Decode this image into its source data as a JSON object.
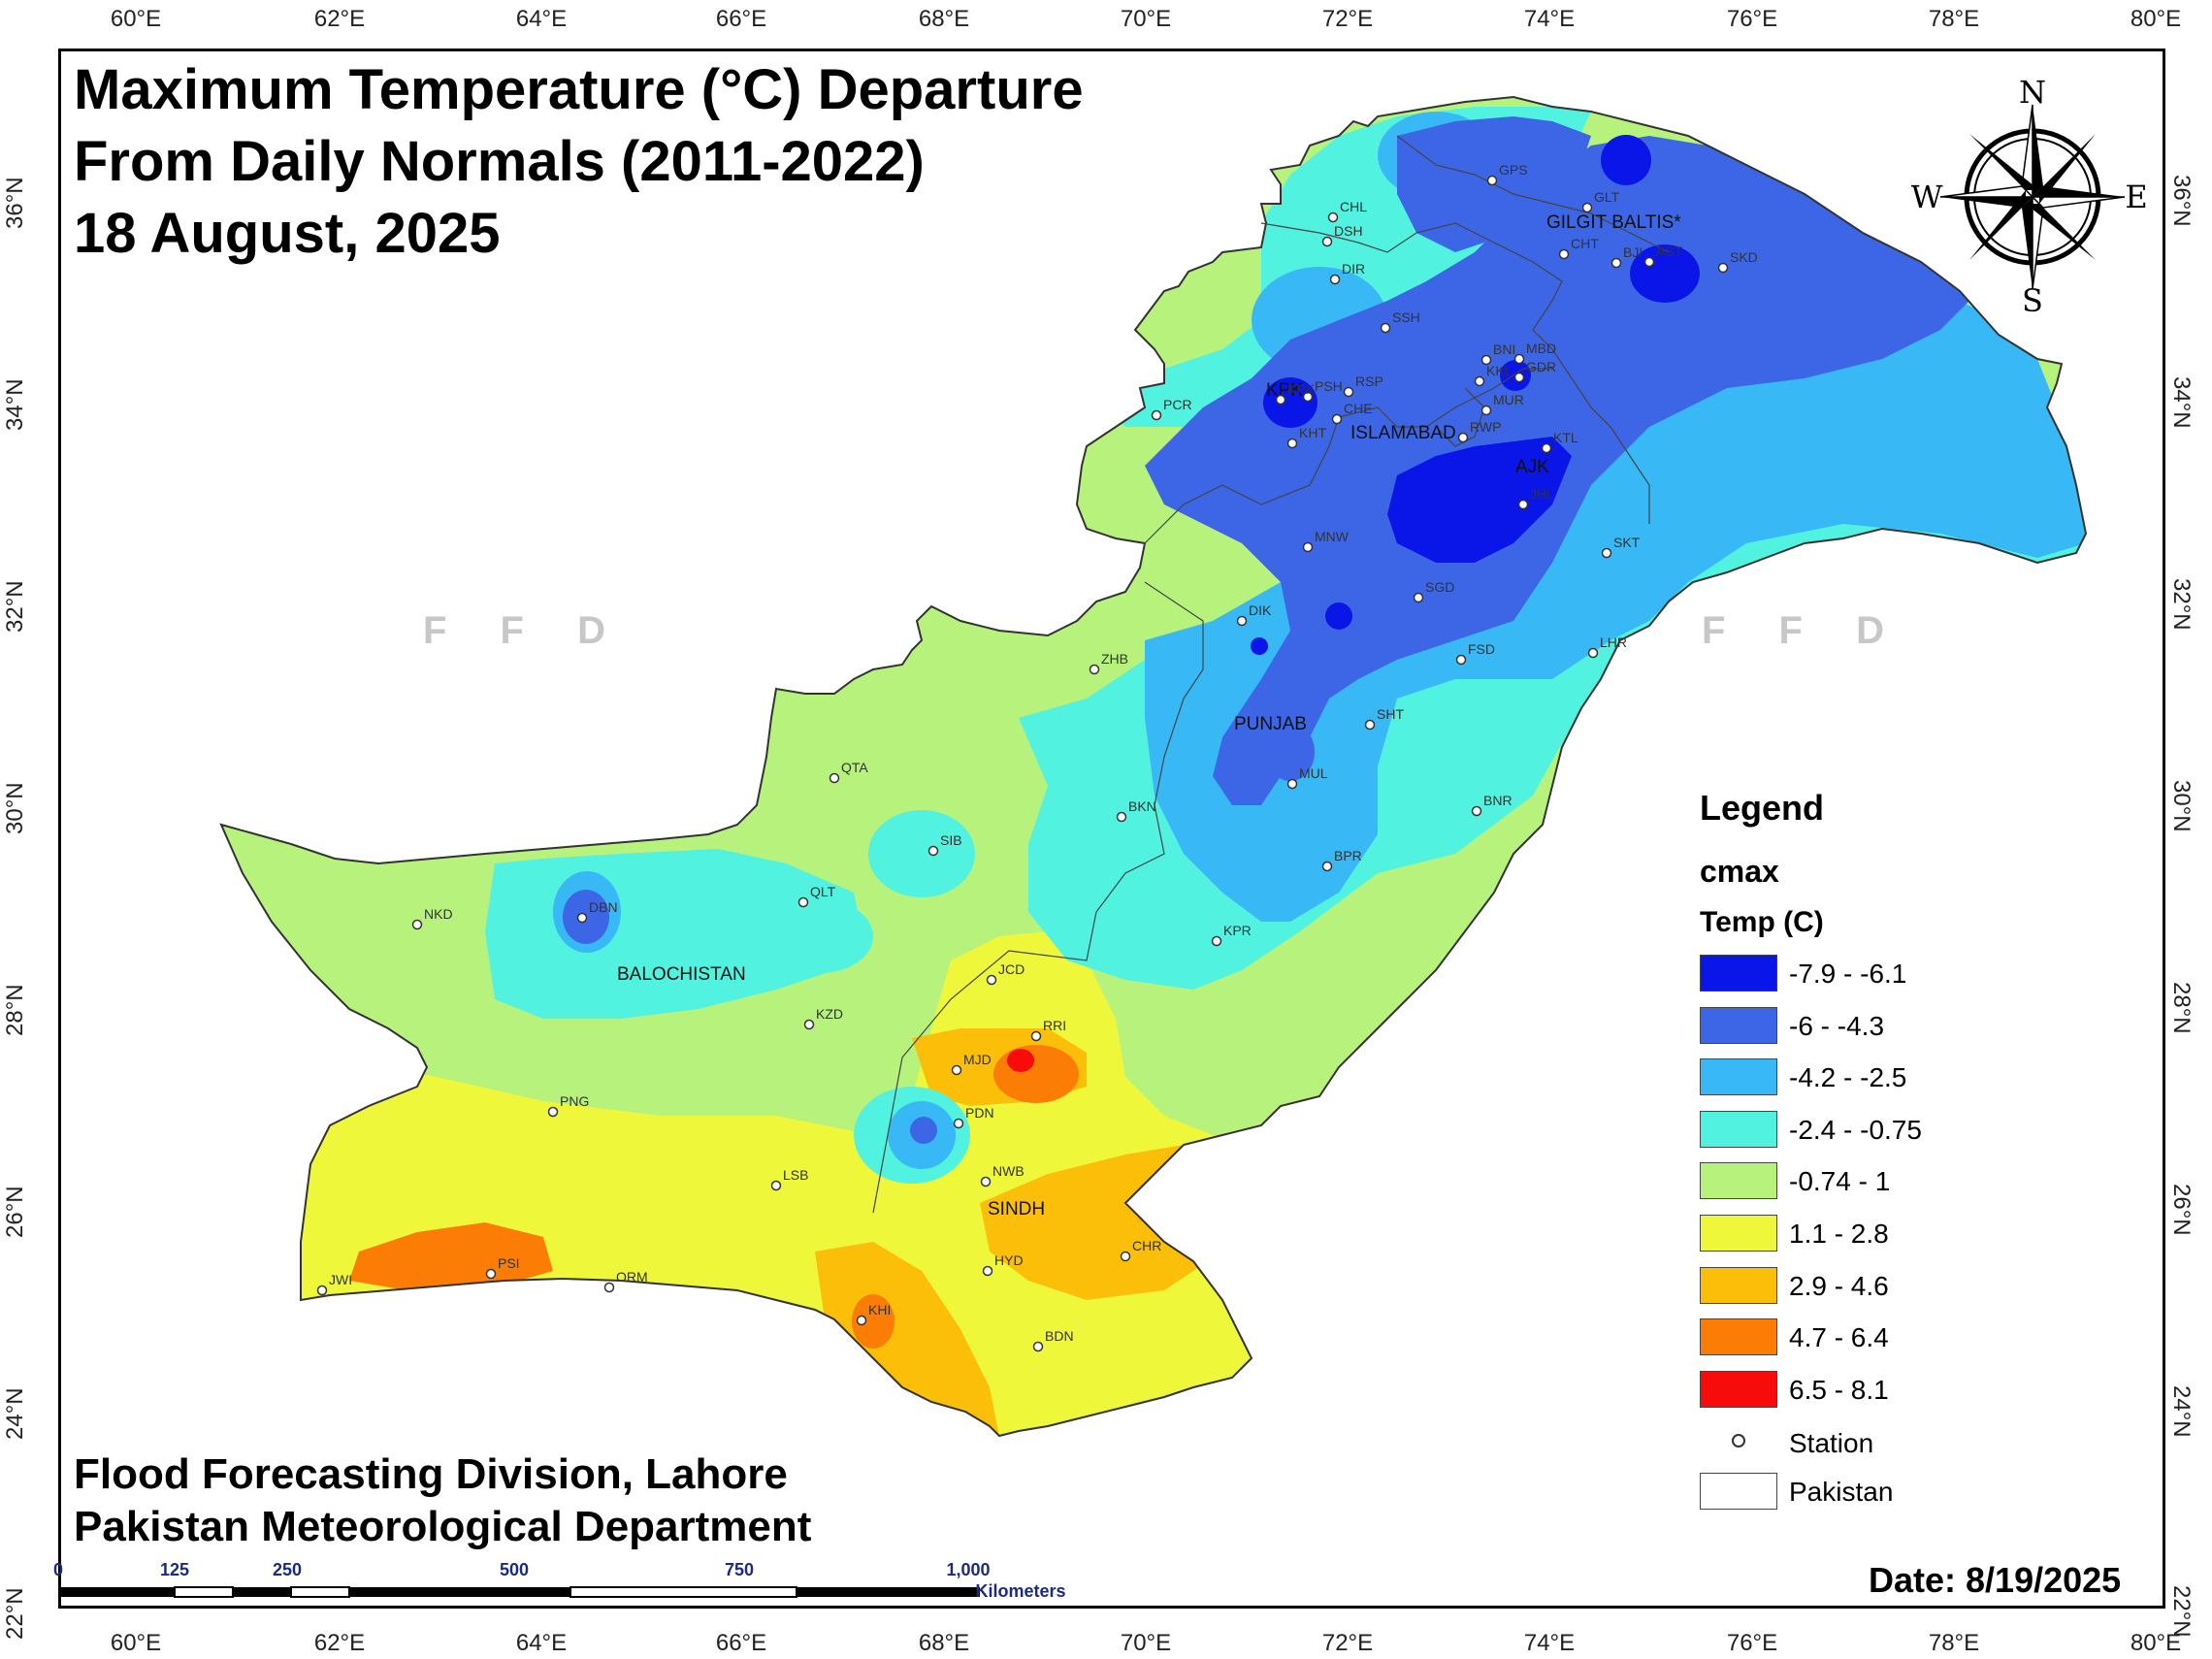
{
  "title": {
    "line1": "Maximum Temperature (°C) Departure",
    "line2": "From Daily Normals (2011-2022)",
    "line3": "18 August, 2025"
  },
  "axes": {
    "longitude_ticks": [
      "60°E",
      "62°E",
      "64°E",
      "66°E",
      "68°E",
      "70°E",
      "72°E",
      "74°E",
      "76°E",
      "78°E",
      "80°E"
    ],
    "latitude_ticks": [
      "36°N",
      "34°N",
      "32°N",
      "30°N",
      "28°N",
      "26°N",
      "24°N",
      "22°N"
    ]
  },
  "compass": {
    "n": "N",
    "s": "S",
    "e": "E",
    "w": "W"
  },
  "watermark": "F F D",
  "regions": {
    "gilgit_baltistan": "GILGIT BALTIS*",
    "kpk": "KPK",
    "islamabad": "ISLAMABAD",
    "ajk": "AJK",
    "punjab": "PUNJAB",
    "balochistan": "BALOCHISTAN",
    "sindh": "SINDH"
  },
  "stations": [
    "GPS",
    "GLT",
    "CHL",
    "DSH",
    "CHT",
    "BJI",
    "AST",
    "SKD",
    "DIR",
    "SSH",
    "BNI",
    "MBD",
    "KKI",
    "GDR",
    "PSH",
    "RSP",
    "KPK",
    "CHE",
    "MUR",
    "PCR",
    "KHT",
    "RWP",
    "KTL",
    "JHL",
    "MNW",
    "SKT",
    "SGD",
    "DIK",
    "FSD",
    "LHR",
    "ZHB",
    "SHT",
    "MUL",
    "QTA",
    "BKN",
    "BNR",
    "SIB",
    "BPR",
    "QLT",
    "NKD",
    "DBN",
    "KPR",
    "JCD",
    "KZD",
    "RRI",
    "MJD",
    "PNG",
    "PDN",
    "NWB",
    "LSB",
    "CHR",
    "HYD",
    "PSI",
    "JWI",
    "ORM",
    "KHI",
    "BDN"
  ],
  "legend": {
    "title": "Legend",
    "layer": "cmax",
    "field": "Temp (C)",
    "classes": [
      {
        "label": "-7.9 - -6.1",
        "color": "#0a16e8"
      },
      {
        "label": "-6 - -4.3",
        "color": "#3d66e6"
      },
      {
        "label": "-4.2 - -2.5",
        "color": "#38b8f5"
      },
      {
        "label": "-2.4 - -0.75",
        "color": "#52f2e0"
      },
      {
        "label": "-0.74 - 1",
        "color": "#b7f27d"
      },
      {
        "label": "1.1 - 2.8",
        "color": "#eff73b"
      },
      {
        "label": "2.9 - 4.6",
        "color": "#fbbf0a"
      },
      {
        "label": "4.7 - 6.4",
        "color": "#fb7d06"
      },
      {
        "label": "6.5 - 8.1",
        "color": "#f80b0b"
      }
    ],
    "station": "Station",
    "boundary": "Pakistan"
  },
  "credits": {
    "line1": "Flood Forecasting Division, Lahore",
    "line2": "Pakistan Meteorological Department"
  },
  "date": "Date: 8/19/2025",
  "scale_bar": {
    "labels": [
      "0",
      "125",
      "250",
      "500",
      "750",
      "1,000"
    ],
    "unit": "Kilometers"
  }
}
